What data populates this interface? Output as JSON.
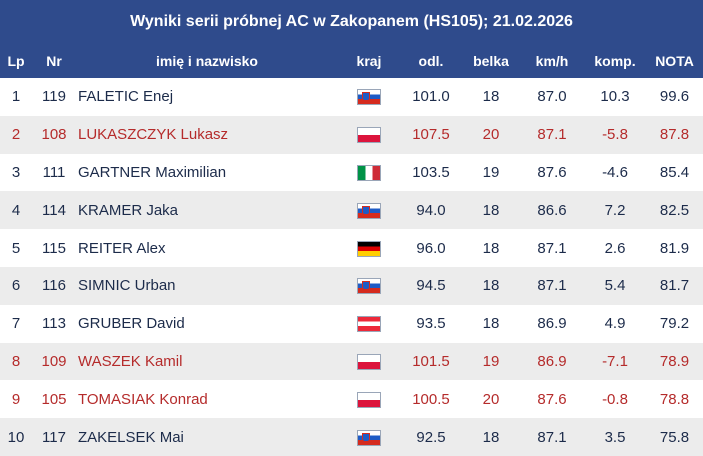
{
  "title": "Wyniki serii próbnej AC w Zakopanem (HS105); 21.02.2026",
  "columns": [
    "Lp",
    "Nr",
    "imię i nazwisko",
    "kraj",
    "odl.",
    "belka",
    "km/h",
    "komp.",
    "NOTA"
  ],
  "colors": {
    "header_bg": "#2f4b8c",
    "polish_text": "#b52b2b",
    "text": "#1c2b4a",
    "alt_row": "#ececec"
  },
  "rows": [
    {
      "lp": "1",
      "nr": "119",
      "name": "FALETIC Enej",
      "flag": "slovenia-flag",
      "odl": "101.0",
      "belka": "18",
      "kmh": "87.0",
      "komp": "10.3",
      "nota": "99.6",
      "pl": false
    },
    {
      "lp": "2",
      "nr": "108",
      "name": "LUKASZCZYK Lukasz",
      "flag": "poland-flag",
      "odl": "107.5",
      "belka": "20",
      "kmh": "87.1",
      "komp": "-5.8",
      "nota": "87.8",
      "pl": true
    },
    {
      "lp": "3",
      "nr": "111",
      "name": "GARTNER Maximilian",
      "flag": "italy-flag",
      "odl": "103.5",
      "belka": "19",
      "kmh": "87.6",
      "komp": "-4.6",
      "nota": "85.4",
      "pl": false
    },
    {
      "lp": "4",
      "nr": "114",
      "name": "KRAMER Jaka",
      "flag": "slovenia-flag",
      "odl": "94.0",
      "belka": "18",
      "kmh": "86.6",
      "komp": "7.2",
      "nota": "82.5",
      "pl": false
    },
    {
      "lp": "5",
      "nr": "115",
      "name": "REITER Alex",
      "flag": "germany-flag",
      "odl": "96.0",
      "belka": "18",
      "kmh": "87.1",
      "komp": "2.6",
      "nota": "81.9",
      "pl": false
    },
    {
      "lp": "6",
      "nr": "116",
      "name": "SIMNIC Urban",
      "flag": "slovenia-flag",
      "odl": "94.5",
      "belka": "18",
      "kmh": "87.1",
      "komp": "5.4",
      "nota": "81.7",
      "pl": false
    },
    {
      "lp": "7",
      "nr": "113",
      "name": "GRUBER David",
      "flag": "austria-flag",
      "odl": "93.5",
      "belka": "18",
      "kmh": "86.9",
      "komp": "4.9",
      "nota": "79.2",
      "pl": false
    },
    {
      "lp": "8",
      "nr": "109",
      "name": "WASZEK Kamil",
      "flag": "poland-flag",
      "odl": "101.5",
      "belka": "19",
      "kmh": "86.9",
      "komp": "-7.1",
      "nota": "78.9",
      "pl": true
    },
    {
      "lp": "9",
      "nr": "105",
      "name": "TOMASIAK Konrad",
      "flag": "poland-flag",
      "odl": "100.5",
      "belka": "20",
      "kmh": "87.6",
      "komp": "-0.8",
      "nota": "78.8",
      "pl": true
    },
    {
      "lp": "10",
      "nr": "117",
      "name": "ZAKELSEK Mai",
      "flag": "slovenia-flag",
      "odl": "92.5",
      "belka": "18",
      "kmh": "87.1",
      "komp": "3.5",
      "nota": "75.8",
      "pl": false
    }
  ]
}
